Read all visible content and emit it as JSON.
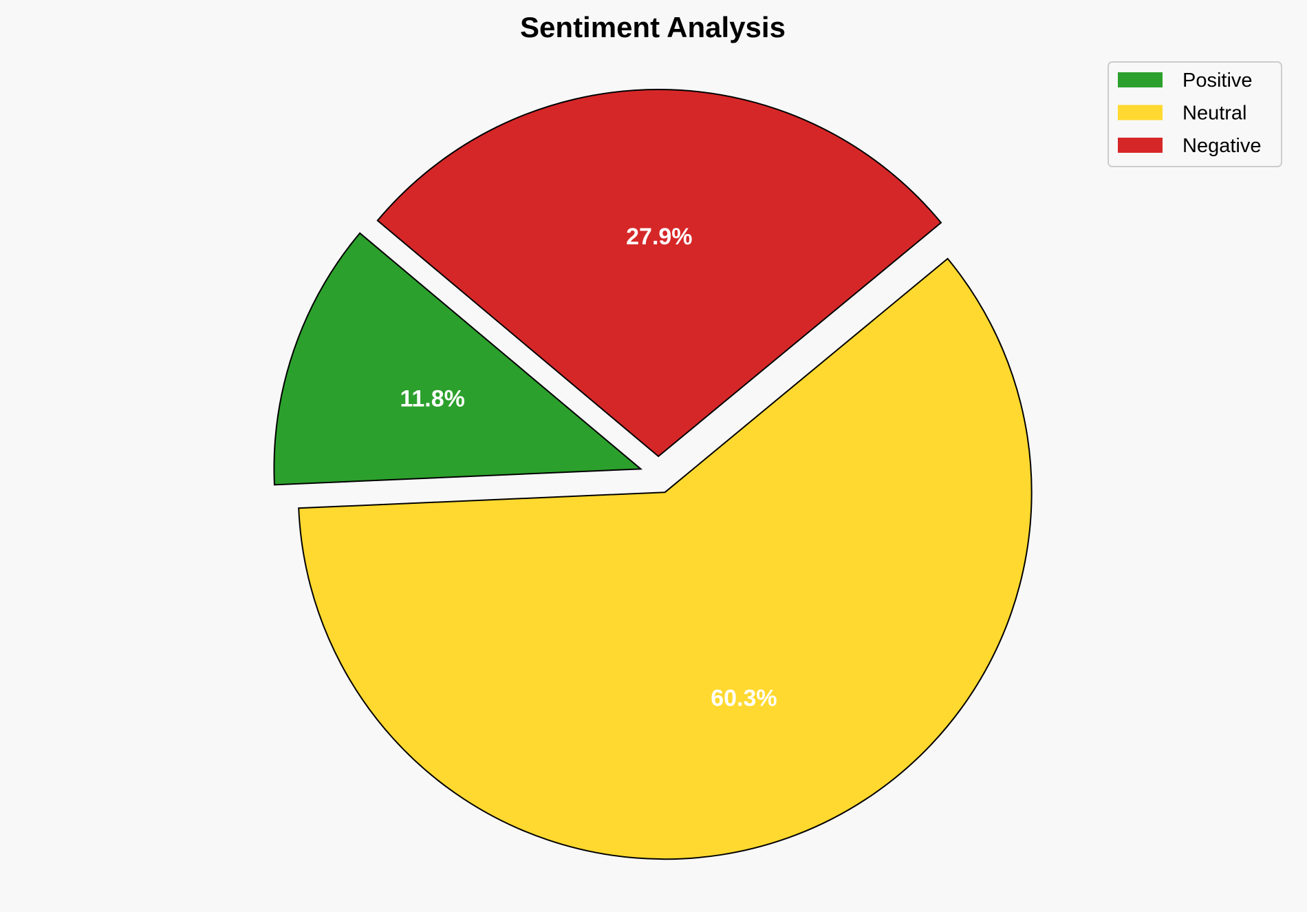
{
  "chart_data": {
    "type": "pie",
    "title": "Sentiment Analysis",
    "categories": [
      "Positive",
      "Neutral",
      "Negative"
    ],
    "values": [
      11.8,
      60.3,
      27.9
    ],
    "labels": [
      "11.8%",
      "60.3%",
      "27.9%"
    ],
    "colors": [
      "#2ca02c",
      "#ffd92f",
      "#d62728"
    ],
    "start_angle_deg": 140,
    "direction": "counterclockwise",
    "exploded": [
      true,
      true,
      true
    ],
    "edge_color": "#000000",
    "legend": {
      "entries": [
        "Positive",
        "Neutral",
        "Negative"
      ],
      "placement": "top-right"
    }
  }
}
